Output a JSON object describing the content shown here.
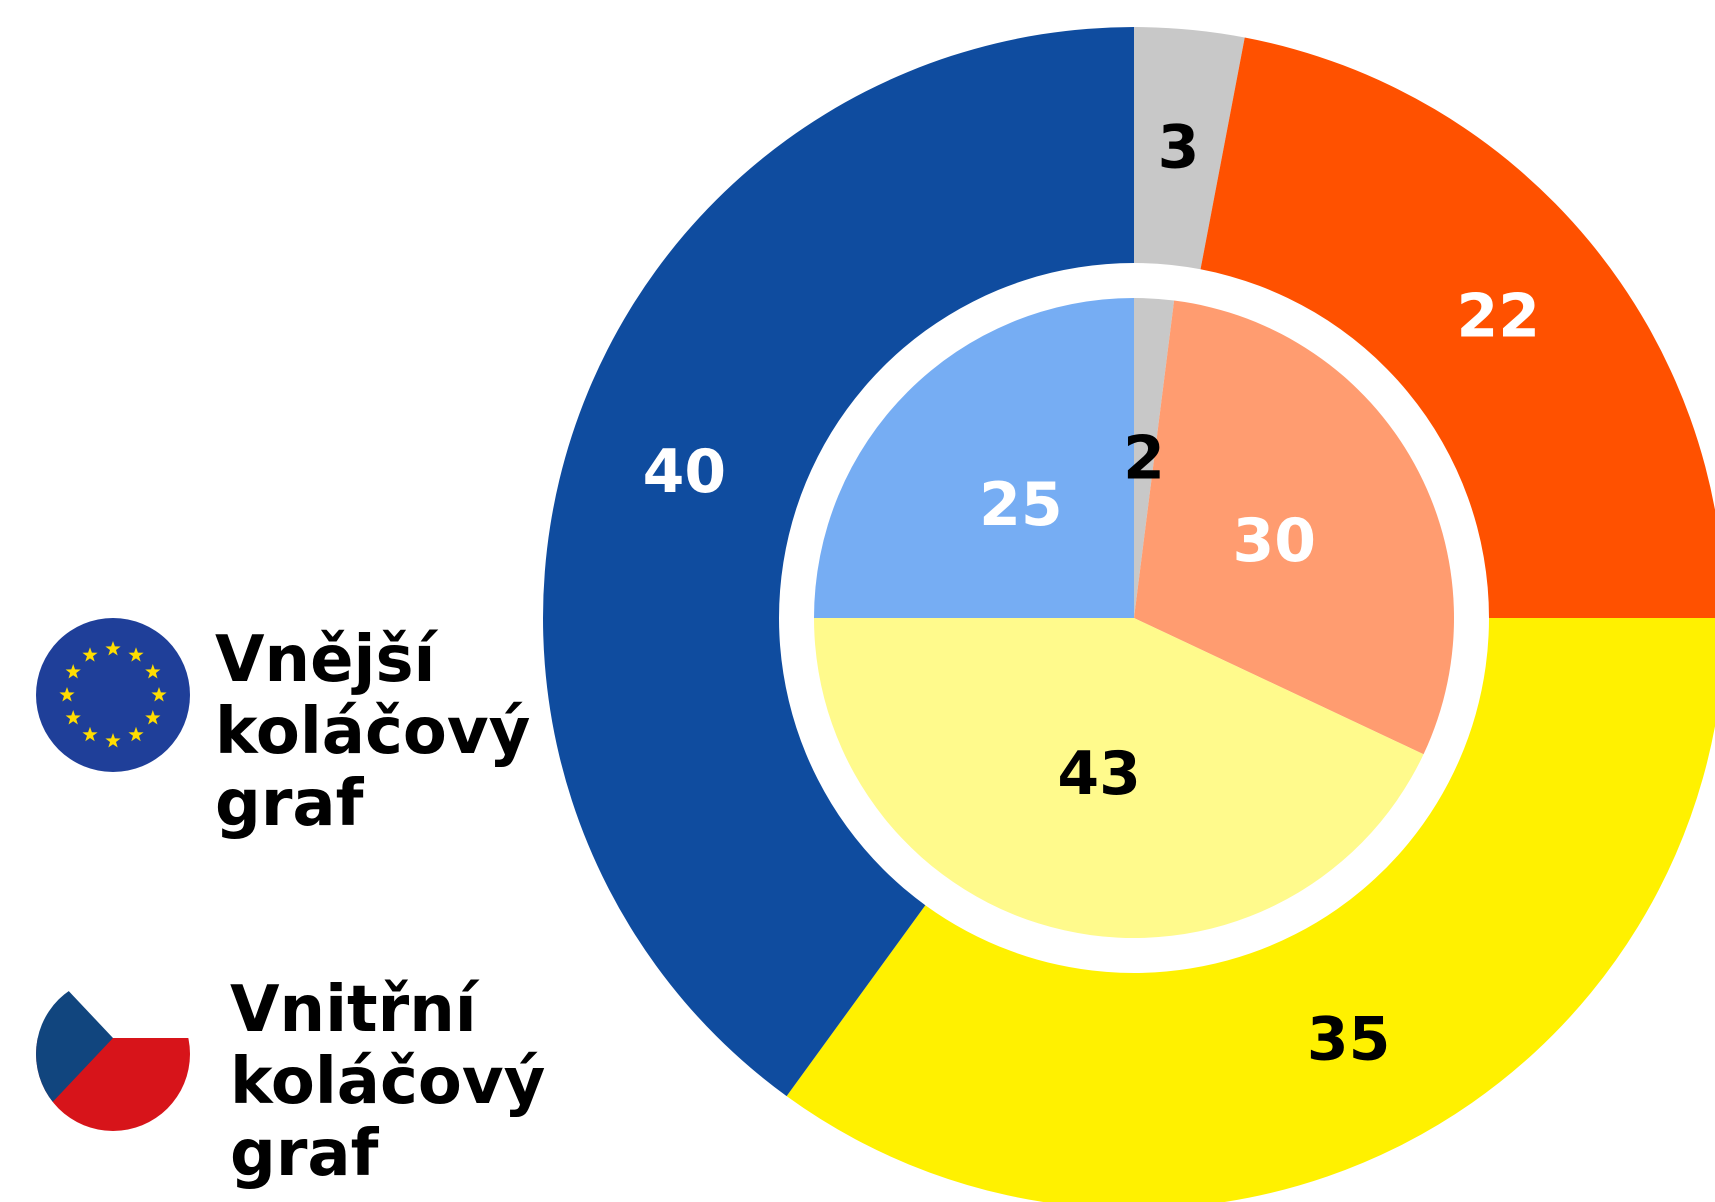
{
  "chart_data": [
    {
      "type": "donut",
      "name": "Vnější koláčový graf",
      "values": [
        3,
        22,
        35,
        40
      ],
      "colors": [
        "#c8c8c8",
        "#ff5100",
        "#fff100",
        "#0f4c9f"
      ],
      "label_colors": [
        "#000000",
        "#ffffff",
        "#000000",
        "#ffffff"
      ]
    },
    {
      "type": "pie",
      "name": "Vnitřní koláčový graf",
      "values": [
        2,
        30,
        43,
        25
      ],
      "colors": [
        "#c8c8c8",
        "#ff9c70",
        "#fffa8c",
        "#76adf3"
      ],
      "label_colors": [
        "#000000",
        "#ffffff",
        "#000000",
        "#ffffff"
      ]
    }
  ]
}
